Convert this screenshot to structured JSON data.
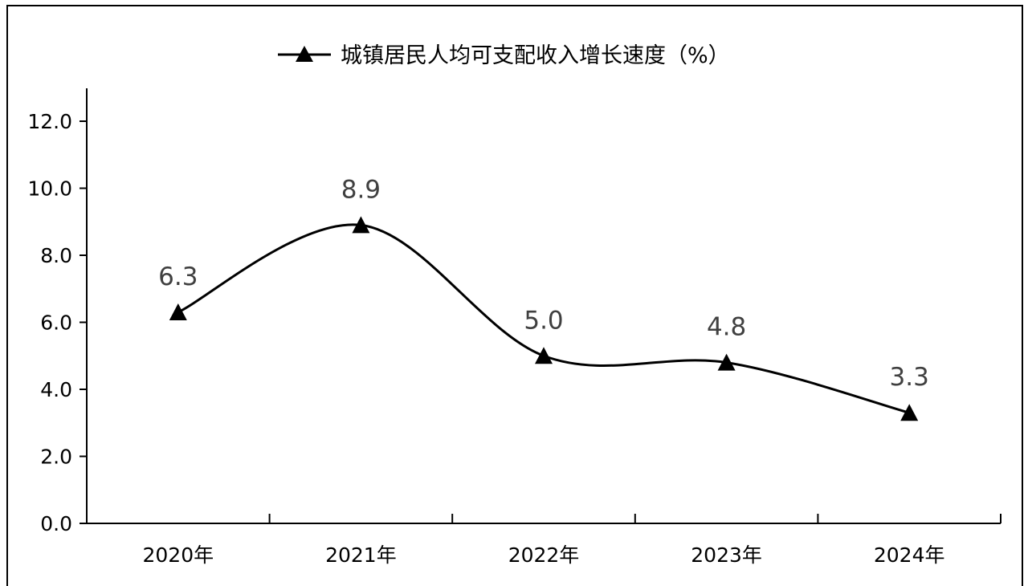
{
  "chart_data": {
    "type": "line",
    "categories": [
      "2020年",
      "2021年",
      "2022年",
      "2023年",
      "2024年"
    ],
    "series": [
      {
        "name": "城镇居民人均可支配收入增长速度（%）",
        "values": [
          6.3,
          8.9,
          5.0,
          4.8,
          3.3
        ],
        "color": "#000000",
        "marker": "triangle"
      }
    ],
    "data_labels": [
      "6.3",
      "8.9",
      "5.0",
      "4.8",
      "3.3"
    ],
    "y_ticks": [
      "0.0",
      "2.0",
      "4.0",
      "6.0",
      "8.0",
      "10.0",
      "12.0"
    ],
    "ylim": [
      0,
      12
    ],
    "legend": {
      "placement": "top-center"
    },
    "grid": false,
    "smooth": true
  }
}
